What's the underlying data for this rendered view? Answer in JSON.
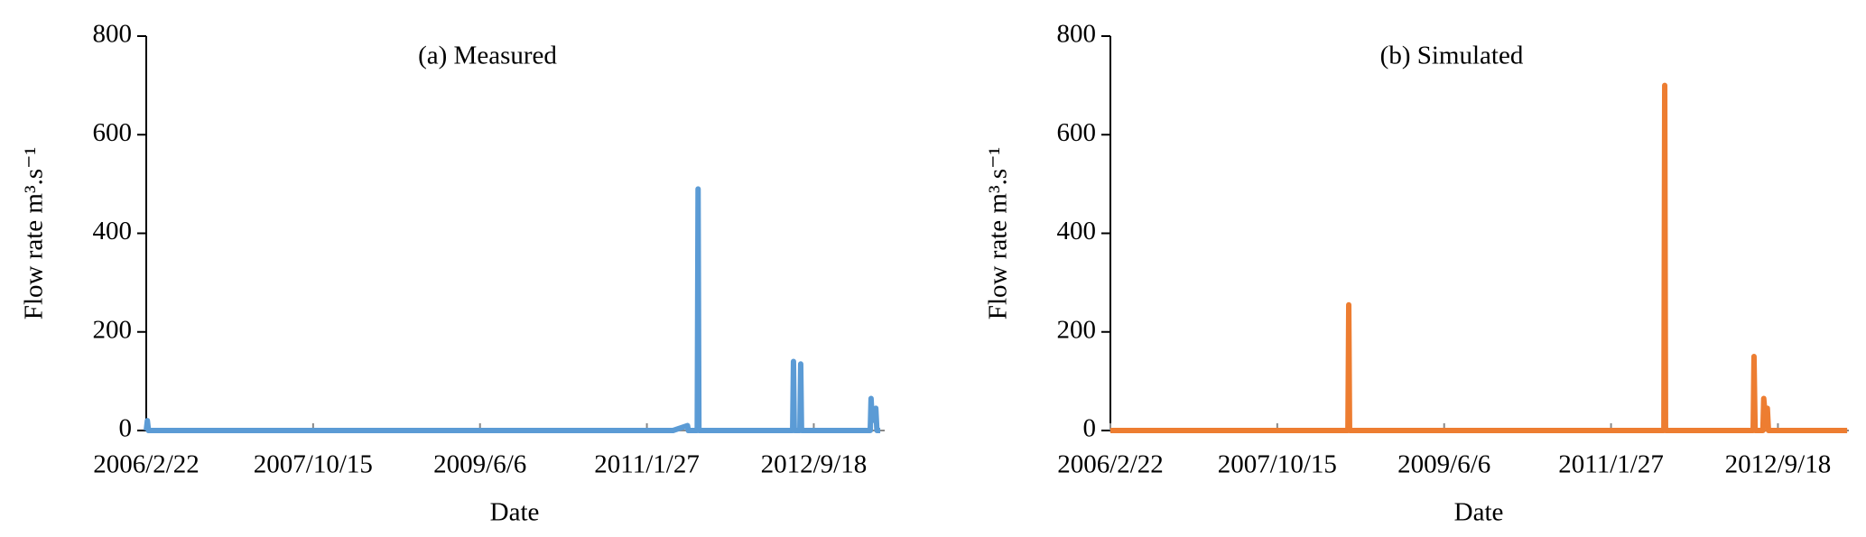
{
  "chart_data": [
    {
      "type": "line",
      "title": "(a) Measured",
      "xlabel": "Date",
      "ylabel": "Flow rate m³.s⁻¹",
      "color": "#5b9bd5",
      "x": [
        "2006/2/22",
        "2006/2/26",
        "2006/3/2",
        "2011/5/1",
        "2011/6/22",
        "2011/6/25",
        "2011/7/27",
        "2011/7/30",
        "2011/8/2",
        "2012/7/4",
        "2012/7/7",
        "2012/7/10",
        "2012/7/30",
        "2012/8/2",
        "2012/8/5",
        "2013/4/9",
        "2013/4/12",
        "2013/4/16",
        "2013/4/29",
        "2013/5/3",
        "2013/5/15"
      ],
      "values": [
        0,
        20,
        0,
        0,
        10,
        0,
        0,
        490,
        0,
        0,
        140,
        0,
        0,
        135,
        0,
        0,
        65,
        20,
        45,
        0,
        0
      ],
      "xlim": [
        "2006/2/22",
        "2013/5/31"
      ],
      "xticks": [
        "2006/2/22",
        "2007/10/15",
        "2009/6/6",
        "2011/1/27",
        "2012/9/18"
      ],
      "ylim": [
        0,
        800
      ],
      "yticks": [
        0,
        200,
        400,
        600,
        800
      ]
    },
    {
      "type": "line",
      "title": "(b) Simulated",
      "xlabel": "Date",
      "ylabel": "Flow rate m³.s⁻¹",
      "color": "#ed7d31",
      "x": [
        "2006/2/22",
        "2008/6/25",
        "2008/6/28",
        "2008/7/1",
        "2011/8/5",
        "2011/8/8",
        "2011/8/11",
        "2012/6/21",
        "2012/6/24",
        "2012/6/28",
        "2012/7/26",
        "2012/7/29",
        "2012/8/5",
        "2012/8/11",
        "2012/8/15",
        "2013/5/25"
      ],
      "values": [
        0,
        0,
        255,
        0,
        0,
        700,
        0,
        0,
        150,
        0,
        0,
        65,
        20,
        45,
        0,
        0
      ],
      "xlim": [
        "2006/2/22",
        "2013/5/31"
      ],
      "xticks": [
        "2006/2/22",
        "2007/10/15",
        "2009/6/6",
        "2011/1/27",
        "2012/9/18"
      ],
      "ylim": [
        0,
        800
      ],
      "yticks": [
        0,
        200,
        400,
        600,
        800
      ]
    }
  ]
}
